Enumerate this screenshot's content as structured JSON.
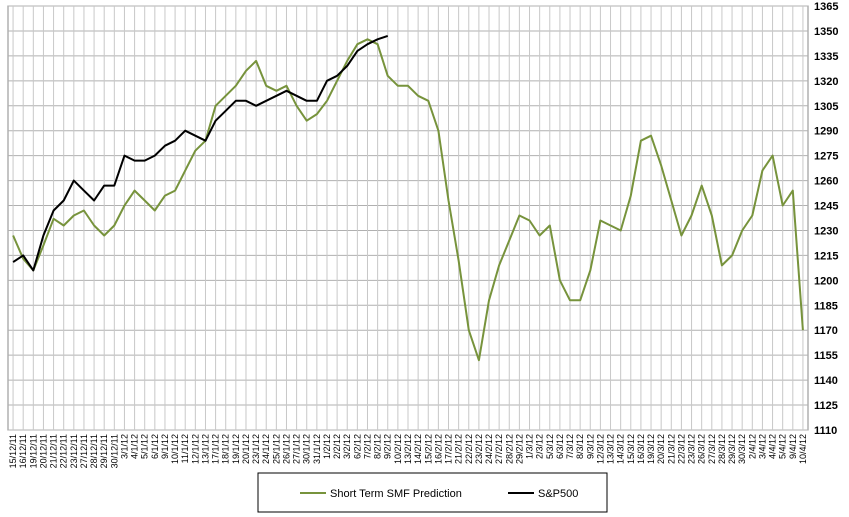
{
  "chart_data": {
    "type": "line",
    "categories": [
      "15/12/11",
      "16/12/11",
      "19/12/11",
      "20/12/11",
      "21/12/11",
      "22/12/11",
      "23/12/11",
      "27/12/11",
      "28/12/11",
      "29/12/11",
      "30/12/11",
      "3/1/12",
      "4/1/12",
      "5/1/12",
      "6/1/12",
      "9/1/12",
      "10/1/12",
      "11/1/12",
      "12/1/12",
      "13/1/12",
      "17/1/12",
      "18/1/12",
      "19/1/12",
      "20/1/12",
      "23/1/12",
      "24/1/12",
      "25/1/12",
      "26/1/12",
      "27/1/12",
      "30/1/12",
      "31/1/12",
      "1/2/12",
      "2/2/12",
      "3/2/12",
      "6/2/12",
      "7/2/12",
      "8/2/12",
      "9/2/12",
      "10/2/12",
      "13/2/12",
      "14/2/12",
      "15/2/12",
      "16/2/12",
      "17/2/12",
      "21/2/12",
      "22/2/12",
      "23/2/12",
      "24/2/12",
      "27/2/12",
      "28/2/12",
      "29/2/12",
      "1/3/12",
      "2/3/12",
      "5/3/12",
      "6/3/12",
      "7/3/12",
      "8/3/12",
      "9/3/12",
      "12/3/12",
      "13/3/12",
      "14/3/12",
      "15/3/12",
      "16/3/12",
      "19/3/12",
      "20/3/12",
      "21/3/12",
      "22/3/12",
      "23/3/12",
      "26/3/12",
      "27/3/12",
      "28/3/12",
      "29/3/12",
      "30/3/12",
      "2/4/12",
      "3/4/12",
      "4/4/12",
      "5/4/12",
      "9/4/12",
      "10/4/12"
    ],
    "series": [
      {
        "name": "Short Term SMF Prediction",
        "color": "#77933c",
        "values": [
          1227,
          1213,
          1206,
          1221,
          1237,
          1233,
          1239,
          1242,
          1233,
          1227,
          1233,
          1245,
          1254,
          1248,
          1242,
          1251,
          1254,
          1266,
          1278,
          1284,
          1305,
          1311,
          1317,
          1326,
          1332,
          1317,
          1314,
          1317,
          1305,
          1296,
          1300,
          1308,
          1320,
          1332,
          1342,
          1345,
          1342,
          1323,
          1317,
          1317,
          1311,
          1308,
          1290,
          1248,
          1212,
          1170,
          1152,
          1188,
          1209,
          1224,
          1239,
          1236,
          1227,
          1233,
          1200,
          1188,
          1188,
          1206,
          1236,
          1233,
          1230,
          1251,
          1284,
          1287,
          1269,
          1248,
          1227,
          1239,
          1257,
          1239,
          1209,
          1215,
          1230,
          1239,
          1266,
          1275,
          1245,
          1254,
          1170
        ]
      },
      {
        "name": "S&P500",
        "color": "#000000",
        "values": [
          1211,
          1215,
          1206,
          1227,
          1242,
          1248,
          1260,
          1254,
          1248,
          1257,
          1257,
          1275,
          1272,
          1272,
          1275,
          1281,
          1284,
          1290,
          1287,
          1284,
          1296,
          1302,
          1308,
          1308,
          1305,
          1308,
          1311,
          1314,
          1311,
          1308,
          1308,
          1320,
          1323,
          1329,
          1338,
          1342,
          1345,
          1347,
          null,
          null,
          null,
          null,
          null,
          null,
          null,
          null,
          null,
          null,
          null,
          null,
          null,
          null,
          null,
          null,
          null,
          null,
          null,
          null,
          null,
          null,
          null,
          null,
          null,
          null,
          null,
          null,
          null,
          null,
          null,
          null,
          null,
          null,
          null,
          null,
          null,
          null,
          null,
          null,
          null
        ]
      }
    ],
    "ylim": [
      1110,
      1365
    ],
    "yticks": [
      1110,
      1125,
      1140,
      1155,
      1170,
      1185,
      1200,
      1215,
      1230,
      1245,
      1260,
      1275,
      1290,
      1305,
      1320,
      1335,
      1350,
      1365
    ],
    "grid": true,
    "legend": "bottom"
  }
}
